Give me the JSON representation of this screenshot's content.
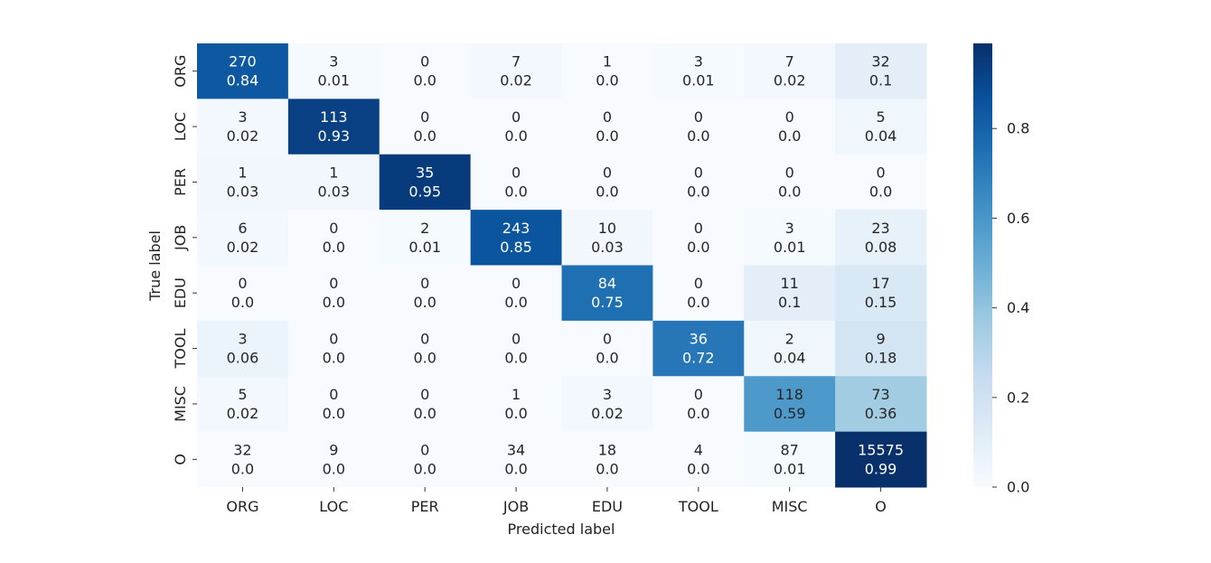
{
  "chart_data": {
    "type": "heatmap",
    "title": "",
    "xlabel": "Predicted label",
    "ylabel": "True label",
    "x_categories": [
      "ORG",
      "LOC",
      "PER",
      "JOB",
      "EDU",
      "TOOL",
      "MISC",
      "O"
    ],
    "y_categories": [
      "ORG",
      "LOC",
      "PER",
      "JOB",
      "EDU",
      "TOOL",
      "MISC",
      "O"
    ],
    "counts": [
      [
        270,
        3,
        0,
        7,
        1,
        3,
        7,
        32
      ],
      [
        3,
        113,
        0,
        0,
        0,
        0,
        0,
        5
      ],
      [
        1,
        1,
        35,
        0,
        0,
        0,
        0,
        0
      ],
      [
        6,
        0,
        2,
        243,
        10,
        0,
        3,
        23
      ],
      [
        0,
        0,
        0,
        0,
        84,
        0,
        11,
        17
      ],
      [
        3,
        0,
        0,
        0,
        0,
        36,
        2,
        9
      ],
      [
        5,
        0,
        0,
        1,
        3,
        0,
        118,
        73
      ],
      [
        32,
        9,
        0,
        34,
        18,
        4,
        87,
        15575
      ]
    ],
    "normalized": [
      [
        "0.84",
        "0.01",
        "0.0",
        "0.02",
        "0.0",
        "0.01",
        "0.02",
        "0.1"
      ],
      [
        "0.02",
        "0.93",
        "0.0",
        "0.0",
        "0.0",
        "0.0",
        "0.0",
        "0.04"
      ],
      [
        "0.03",
        "0.03",
        "0.95",
        "0.0",
        "0.0",
        "0.0",
        "0.0",
        "0.0"
      ],
      [
        "0.02",
        "0.0",
        "0.01",
        "0.85",
        "0.03",
        "0.0",
        "0.01",
        "0.08"
      ],
      [
        "0.0",
        "0.0",
        "0.0",
        "0.0",
        "0.75",
        "0.0",
        "0.1",
        "0.15"
      ],
      [
        "0.06",
        "0.0",
        "0.0",
        "0.0",
        "0.0",
        "0.72",
        "0.04",
        "0.18"
      ],
      [
        "0.02",
        "0.0",
        "0.0",
        "0.0",
        "0.02",
        "0.0",
        "0.59",
        "0.36"
      ],
      [
        "0.0",
        "0.0",
        "0.0",
        "0.0",
        "0.0",
        "0.0",
        "0.01",
        "0.99"
      ]
    ],
    "colorbar": {
      "range": [
        0.0,
        0.99
      ],
      "ticks": [
        0.0,
        0.2,
        0.4,
        0.6,
        0.8
      ],
      "tick_labels": [
        "0.0",
        "0.2",
        "0.4",
        "0.6",
        "0.8"
      ],
      "colormap": "Blues"
    }
  }
}
